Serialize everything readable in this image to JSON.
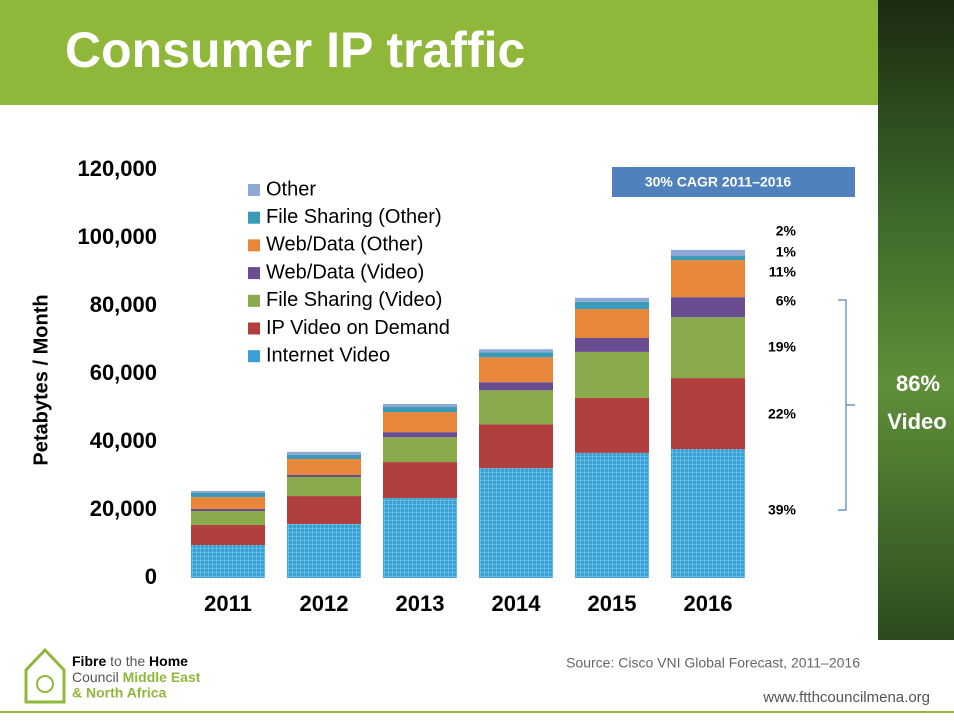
{
  "chart_data": {
    "type": "stacked-bar",
    "title": "Consumer IP traffic",
    "y_label": "Petabytes / Month",
    "categories": [
      "2011",
      "2012",
      "2013",
      "2014",
      "2015",
      "2016"
    ],
    "series": [
      {
        "name": "Internet Video",
        "color": "#3a9fd2",
        "values": [
          9700,
          15900,
          23500,
          32300,
          36800,
          37900
        ]
      },
      {
        "name": "IP Video on Demand",
        "color": "#b13f3d",
        "values": [
          5900,
          8200,
          10600,
          12900,
          16200,
          20900
        ]
      },
      {
        "name": "File Sharing (Video)",
        "color": "#8aab4b",
        "values": [
          4100,
          5600,
          7300,
          10000,
          13500,
          17900
        ]
      },
      {
        "name": "Web/Data (Video)",
        "color": "#6a4d91",
        "values": [
          600,
          600,
          1500,
          2400,
          4100,
          5900
        ]
      },
      {
        "name": "Web/Data (Other)",
        "color": "#e8873a",
        "values": [
          3500,
          4700,
          5900,
          7300,
          8500,
          10900
        ]
      },
      {
        "name": "File Sharing (Other)",
        "color": "#3a9ab8",
        "values": [
          1200,
          1200,
          1500,
          1500,
          2100,
          1200
        ]
      },
      {
        "name": "Other",
        "color": "#8fa9d6",
        "values": [
          600,
          900,
          900,
          900,
          1200,
          1800
        ]
      }
    ],
    "ylim": [
      0,
      120000
    ],
    "yticks": [
      0,
      {
        "value": 20000,
        "label": "20,000"
      },
      {
        "value": 40000,
        "label": "40,000"
      },
      {
        "value": 60000,
        "label": "60,000"
      },
      {
        "value": 80000,
        "label": "80,000"
      },
      {
        "value": 100000,
        "label": "100,000"
      },
      {
        "value": 120000,
        "label": "120,000"
      }
    ],
    "share_labels": [
      "39%",
      "22%",
      "19%",
      "6%",
      "11%",
      "1%",
      "2%"
    ],
    "cagr_note": "30% CAGR 2011–2016",
    "video_share": [
      "86%",
      "Video"
    ],
    "source": "Source: Cisco VNI Global Forecast, 2011–2016"
  },
  "footer": {
    "logo": [
      "Fibre",
      "to the",
      "Home",
      "Council",
      "Middle East",
      "& North Africa"
    ],
    "url": "www.ftthcouncilmena.org"
  }
}
